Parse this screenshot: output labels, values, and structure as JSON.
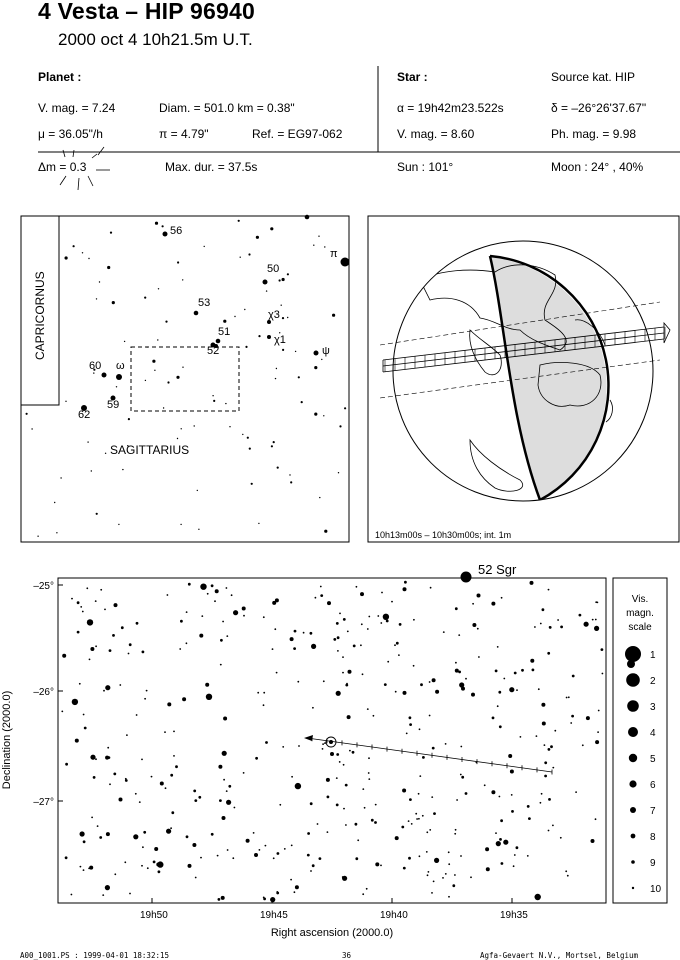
{
  "header": {
    "title": "4 Vesta  –  HIP 96940",
    "datetime": "2000 oct  4  10h21.5m U.T.",
    "planet_label": "Planet :",
    "star_label": "Star :",
    "source_label": "Source kat.  HIP",
    "vmag": "V. mag. =  7.24",
    "diam": "Diam. = 501.0 km = 0.38\"",
    "mu": "μ = 36.05\"/h",
    "pi": "π =  4.79\"",
    "ref": "Ref. = EG97-062",
    "dm": "Δm = 0.3",
    "maxdur": "Max. dur. = 37.5s",
    "alpha": "α = 19h42m23.522s",
    "delta": "δ = –26°26'37.67\"",
    "star_vmag": "V. mag. =  8.60",
    "phmag": "Ph. mag. =  9.98",
    "sun": "Sun : 101°",
    "moon": "Moon :  24° , 40%"
  },
  "finder_chart": {
    "constellations": [
      "CAPRICORNUS",
      "SAGITTARIUS"
    ],
    "labels": [
      {
        "text": "56",
        "x": 170,
        "y": 234
      },
      {
        "text": "50",
        "x": 267,
        "y": 272
      },
      {
        "text": "π",
        "x": 330,
        "y": 257
      },
      {
        "text": "53",
        "x": 198,
        "y": 306
      },
      {
        "text": "χ3",
        "x": 268,
        "y": 318
      },
      {
        "text": "51",
        "x": 218,
        "y": 335
      },
      {
        "text": "χ1",
        "x": 274,
        "y": 343
      },
      {
        "text": "52",
        "x": 207,
        "y": 354
      },
      {
        "text": "ψ",
        "x": 322,
        "y": 354
      },
      {
        "text": "60",
        "x": 89,
        "y": 369
      },
      {
        "text": "ω",
        "x": 116,
        "y": 369
      },
      {
        "text": "59",
        "x": 107,
        "y": 408
      },
      {
        "text": "62",
        "x": 78,
        "y": 418
      }
    ]
  },
  "globe": {
    "caption": "10h13m00s – 10h30m00s; int.  1m"
  },
  "detail_chart": {
    "star_label": "52 Sgr",
    "ylabel": "Declination (2000.0)",
    "xlabel": "Right ascension (2000.0)",
    "yticks": [
      "–25°",
      "–26°",
      "–27°"
    ],
    "xticks": [
      "19h50",
      "19h45",
      "19h40",
      "19h35"
    ]
  },
  "magnitude_scale": {
    "title_lines": [
      "Vis.",
      "magn.",
      "scale"
    ],
    "levels": [
      "1",
      "2",
      "3",
      "4",
      "5",
      "6",
      "7",
      "8",
      "9",
      "10"
    ]
  },
  "footer": {
    "left": "A00_1001.PS : 1999-04-01 18:32:15",
    "center": "36",
    "right": "Agfa-Gevaert N.V., Mortsel, Belgium"
  }
}
